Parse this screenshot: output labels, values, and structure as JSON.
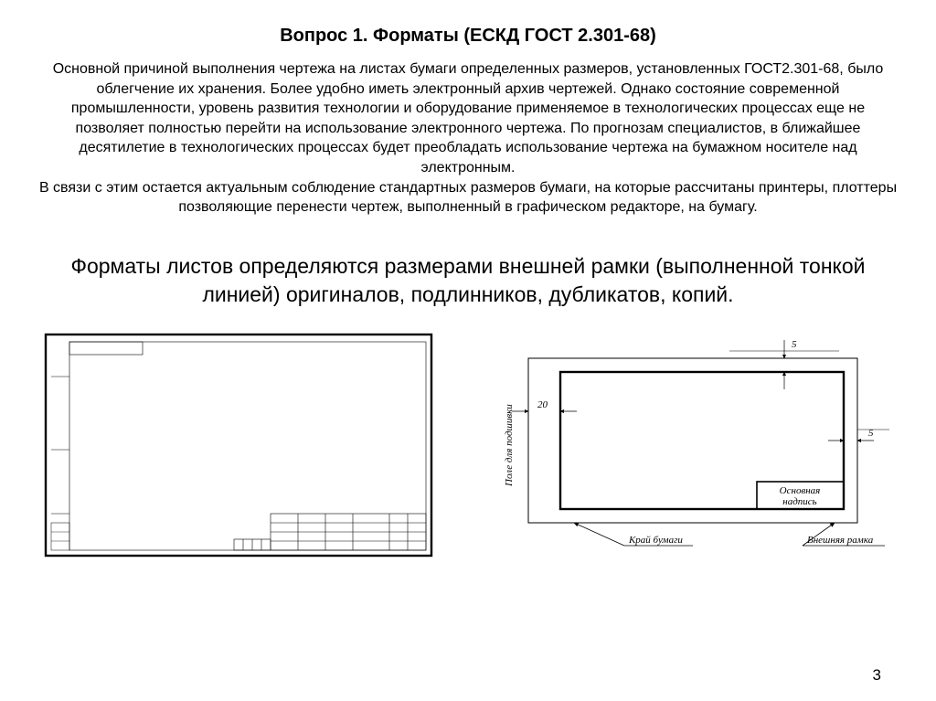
{
  "title": "Вопрос 1. Форматы  (ЕСКД ГОСТ 2.301-68)",
  "body": "Основной причиной выполнения чертежа на листах бумаги определенных размеров, установленных ГОСТ2.301-68, было облегчение их хранения. Более удобно иметь электронный архив чертежей. Однако состояние современной промышленности, уровень развития технологии и оборудование применяемое в технологических процессах еще не позволяет полностью перейти на использование электронного чертежа. По прогнозам специалистов, в ближайшее десятилетие в технологических процессах будет преобладать использование чертежа на бумажном носителе над электронным.\nВ связи с этим остается актуальным соблюдение стандартных размеров бумаги, на которые рассчитаны принтеры, плоттеры позволяющие перенести чертеж, выполненный в графическом редакторе, на бумагу.",
  "subheading": "Форматы листов определяются размерами внешней рамки (выполненной тонкой линией) оригиналов, подлинников, дубликатов, копий.",
  "page_number": "3",
  "fig_left": {
    "outer_stroke": "#000000",
    "outer_stroke_width": 1.2,
    "inner_stroke": "#000000",
    "inner_stroke_width": 0.5,
    "fill": "#ffffff"
  },
  "fig_right": {
    "dim_top": "5",
    "dim_left": "20",
    "dim_right": "5",
    "label_binding": "Поле для подшивки",
    "label_titleblock_1": "Основная",
    "label_titleblock_2": "надпись",
    "label_edge": "Край бумаги",
    "label_frame": "Внешняя рамка",
    "stroke": "#000000",
    "stroke_outer": 1,
    "stroke_inner": 2.2
  }
}
